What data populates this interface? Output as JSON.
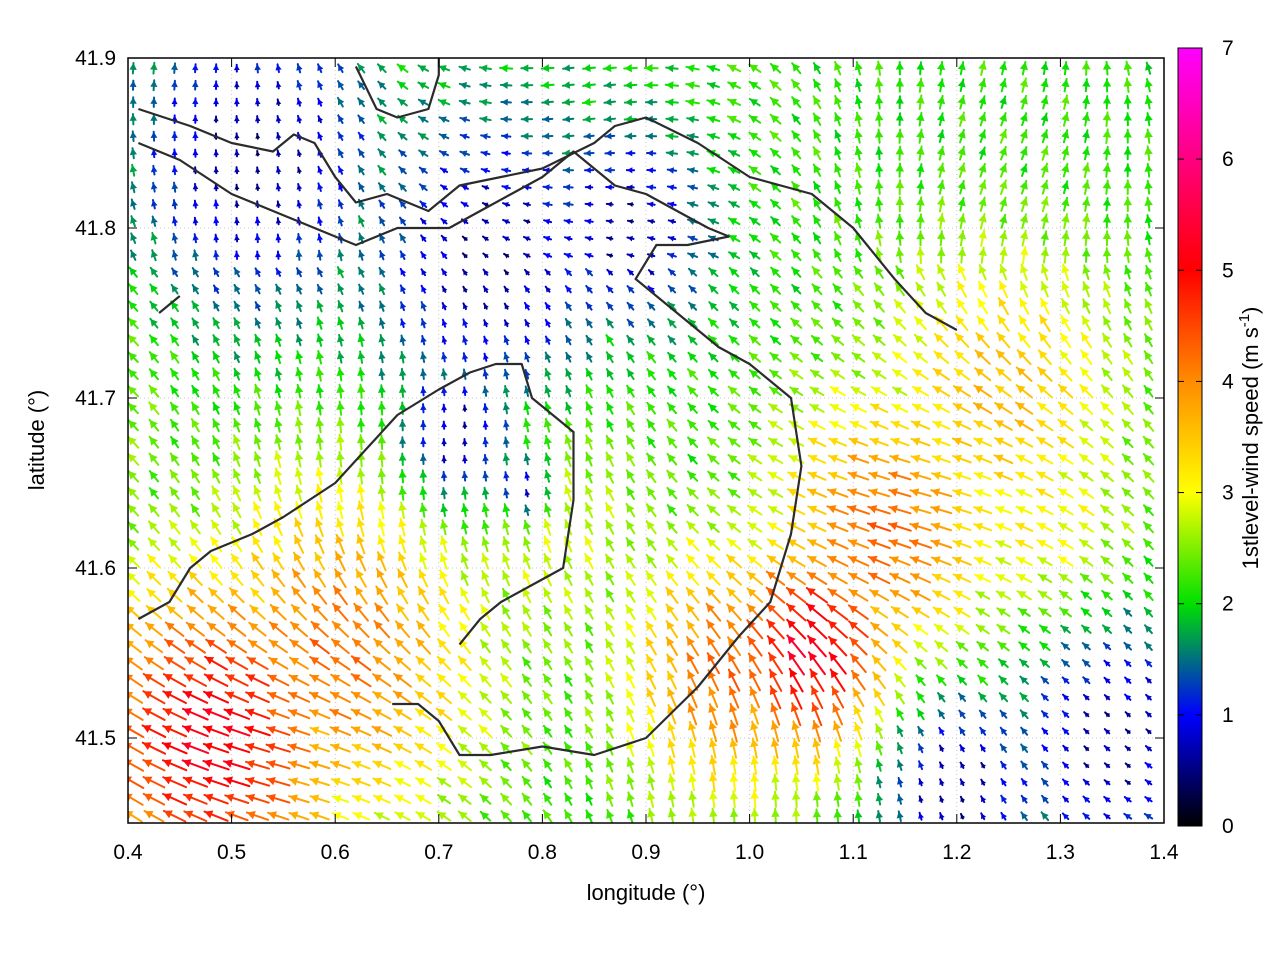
{
  "chart_data": {
    "type": "heatmap",
    "subtype": "vector-field",
    "title": "",
    "xlabel": "longitude (°)",
    "ylabel": "latitude (°)",
    "xlim": [
      0.4,
      1.4
    ],
    "ylim": [
      41.45,
      41.9
    ],
    "x_ticks": [
      "0.4",
      "0.5",
      "0.6",
      "0.7",
      "0.8",
      "0.9",
      "1.0",
      "1.1",
      "1.2",
      "1.3",
      "1.4"
    ],
    "y_ticks": [
      "41.5",
      "41.6",
      "41.7",
      "41.8",
      "41.9"
    ],
    "grid": true,
    "colorbar": {
      "label_main": "1stlevel-wind speed (m s",
      "label_sup": "-1",
      "label_end": ")",
      "range": [
        0,
        7
      ],
      "ticks": [
        "0",
        "1",
        "2",
        "3",
        "4",
        "5",
        "6",
        "7"
      ],
      "colors": [
        "#000000",
        "#0000ff",
        "#00e000",
        "#ffff00",
        "#ff8c00",
        "#ff0000",
        "#ff00ff"
      ]
    },
    "wind_field": {
      "grid_step_lon": 0.02,
      "grid_step_lat": 0.01,
      "dominant_direction": "from southeast (arrows pointing north-west)",
      "speed_centers": [
        {
          "lon": 0.48,
          "lat": 41.5,
          "speed": 5.2,
          "extent": 0.13
        },
        {
          "lon": 0.6,
          "lat": 41.55,
          "speed": 4.2,
          "extent": 0.14
        },
        {
          "lon": 1.06,
          "lat": 41.55,
          "speed": 5.3,
          "extent": 0.09
        },
        {
          "lon": 0.98,
          "lat": 41.54,
          "speed": 4.3,
          "extent": 0.1
        },
        {
          "lon": 1.13,
          "lat": 41.62,
          "speed": 4.3,
          "extent": 0.11
        },
        {
          "lon": 1.24,
          "lat": 41.7,
          "speed": 3.6,
          "extent": 0.12
        },
        {
          "lon": 1.28,
          "lat": 41.62,
          "speed": 3.2,
          "extent": 0.1
        },
        {
          "lon": 0.8,
          "lat": 41.63,
          "speed": 2.9,
          "extent": 0.12
        },
        {
          "lon": 0.28,
          "lat": 41.68,
          "speed": 3.0,
          "extent": 0.14
        },
        {
          "lon": 1.0,
          "lat": 41.86,
          "speed": 2.2,
          "extent": 0.1
        },
        {
          "lon": 1.2,
          "lat": 41.88,
          "speed": 1.8,
          "extent": 0.12
        }
      ],
      "calm_regions": [
        {
          "lon": 0.52,
          "lat": 41.84,
          "extent": 0.12
        },
        {
          "lon": 0.75,
          "lat": 41.78,
          "extent": 0.12
        },
        {
          "lon": 0.88,
          "lat": 41.8,
          "extent": 0.08
        },
        {
          "lon": 0.72,
          "lat": 41.68,
          "extent": 0.06
        },
        {
          "lon": 1.2,
          "lat": 41.47,
          "extent": 0.08
        },
        {
          "lon": 1.35,
          "lat": 41.5,
          "extent": 0.1
        },
        {
          "lon": 0.78,
          "lat": 41.65,
          "extent": 0.03
        }
      ],
      "background_speed": 2.1
    },
    "contour_lines": [
      [
        [
          0.41,
          41.87
        ],
        [
          0.46,
          41.86
        ],
        [
          0.5,
          41.85
        ],
        [
          0.54,
          41.845
        ],
        [
          0.56,
          41.855
        ],
        [
          0.58,
          41.85
        ],
        [
          0.6,
          41.83
        ],
        [
          0.62,
          41.815
        ],
        [
          0.65,
          41.82
        ],
        [
          0.69,
          41.81
        ],
        [
          0.72,
          41.825
        ],
        [
          0.76,
          41.83
        ],
        [
          0.8,
          41.835
        ],
        [
          0.85,
          41.85
        ],
        [
          0.87,
          41.86
        ],
        [
          0.9,
          41.865
        ],
        [
          0.95,
          41.85
        ],
        [
          1.0,
          41.83
        ],
        [
          1.06,
          41.82
        ],
        [
          1.1,
          41.8
        ],
        [
          1.14,
          41.77
        ],
        [
          1.17,
          41.75
        ],
        [
          1.2,
          41.74
        ]
      ],
      [
        [
          0.41,
          41.85
        ],
        [
          0.45,
          41.84
        ],
        [
          0.5,
          41.82
        ],
        [
          0.54,
          41.81
        ],
        [
          0.58,
          41.8
        ],
        [
          0.62,
          41.79
        ],
        [
          0.66,
          41.8
        ],
        [
          0.71,
          41.8
        ],
        [
          0.74,
          41.81
        ],
        [
          0.77,
          41.82
        ],
        [
          0.8,
          41.83
        ],
        [
          0.83,
          41.845
        ],
        [
          0.85,
          41.835
        ],
        [
          0.87,
          41.825
        ],
        [
          0.9,
          41.82
        ],
        [
          0.93,
          41.81
        ],
        [
          0.96,
          41.8
        ],
        [
          0.98,
          41.795
        ],
        [
          0.94,
          41.79
        ],
        [
          0.91,
          41.79
        ],
        [
          0.89,
          41.77
        ],
        [
          0.93,
          41.75
        ],
        [
          0.97,
          41.73
        ],
        [
          1.0,
          41.72
        ],
        [
          1.04,
          41.7
        ],
        [
          1.05,
          41.66
        ],
        [
          1.04,
          41.62
        ],
        [
          1.02,
          41.58
        ],
        [
          0.99,
          41.56
        ],
        [
          0.95,
          41.53
        ],
        [
          0.9,
          41.5
        ],
        [
          0.85,
          41.49
        ],
        [
          0.8,
          41.495
        ],
        [
          0.75,
          41.49
        ],
        [
          0.72,
          41.49
        ],
        [
          0.7,
          41.51
        ],
        [
          0.68,
          41.52
        ],
        [
          0.655,
          41.52
        ]
      ],
      [
        [
          0.41,
          41.57
        ],
        [
          0.44,
          41.58
        ],
        [
          0.46,
          41.6
        ],
        [
          0.48,
          41.61
        ],
        [
          0.52,
          41.62
        ],
        [
          0.55,
          41.63
        ],
        [
          0.6,
          41.65
        ],
        [
          0.63,
          41.67
        ],
        [
          0.66,
          41.69
        ],
        [
          0.7,
          41.705
        ],
        [
          0.73,
          41.715
        ],
        [
          0.755,
          41.72
        ],
        [
          0.78,
          41.72
        ],
        [
          0.79,
          41.7
        ],
        [
          0.81,
          41.69
        ],
        [
          0.83,
          41.68
        ],
        [
          0.83,
          41.64
        ],
        [
          0.82,
          41.6
        ],
        [
          0.79,
          41.59
        ],
        [
          0.76,
          41.58
        ],
        [
          0.74,
          41.57
        ],
        [
          0.72,
          41.555
        ]
      ],
      [
        [
          0.62,
          41.895
        ],
        [
          0.64,
          41.87
        ],
        [
          0.66,
          41.865
        ],
        [
          0.69,
          41.87
        ],
        [
          0.7,
          41.89
        ],
        [
          0.7,
          41.9
        ]
      ],
      [
        [
          0.43,
          41.75
        ],
        [
          0.45,
          41.76
        ]
      ]
    ]
  }
}
